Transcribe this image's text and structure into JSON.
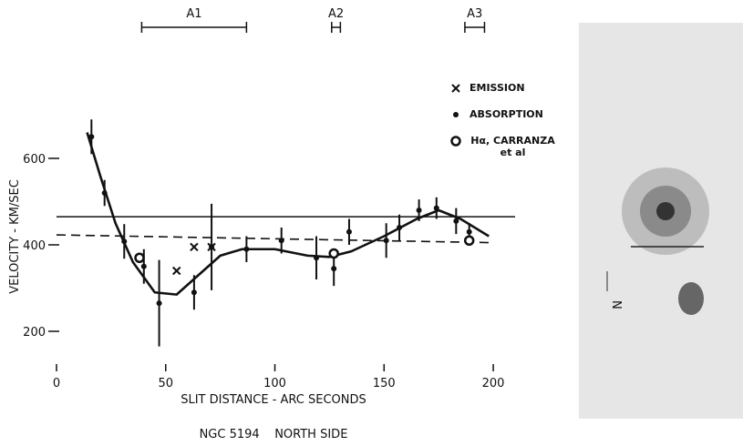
{
  "chart_data": {
    "type": "scatter",
    "ylabel": "VELOCITY - KM/SEC",
    "xlabel": "SLIT DISTANCE - ARC SECONDS",
    "caption": "NGC 5194    NORTH SIDE",
    "xlim": [
      0,
      210
    ],
    "ylim": [
      120,
      720
    ],
    "xticks": [
      0,
      50,
      100,
      150,
      200
    ],
    "yticks": [
      200,
      400,
      600
    ],
    "regions": [
      {
        "label": "A1",
        "range": [
          39,
          87
        ]
      },
      {
        "label": "A2",
        "range": [
          126,
          130
        ]
      },
      {
        "label": "A3",
        "range": [
          187,
          196
        ]
      }
    ],
    "series": [
      {
        "name": "EMISSION",
        "marker": "x",
        "x": [
          55,
          63,
          71
        ],
        "values": [
          340,
          395,
          395
        ]
      },
      {
        "name": "ABSORPTION",
        "marker": "dot",
        "x": [
          16,
          22,
          31,
          40,
          47,
          63,
          71,
          87,
          103,
          119,
          127,
          134,
          151,
          157,
          166,
          174,
          183,
          189
        ],
        "values": [
          650,
          520,
          408,
          350,
          265,
          290,
          395,
          390,
          410,
          370,
          345,
          430,
          410,
          440,
          480,
          485,
          455,
          430
        ],
        "errors": [
          40,
          30,
          40,
          40,
          100,
          40,
          100,
          30,
          30,
          50,
          40,
          30,
          40,
          30,
          25,
          25,
          30,
          20
        ]
      },
      {
        "name": "Hα, CARRANZA et al",
        "marker": "ring",
        "x": [
          38,
          127,
          189
        ],
        "values": [
          370,
          380,
          410
        ]
      }
    ],
    "fit": {
      "x": [
        14,
        20,
        27,
        35,
        45,
        55,
        65,
        75,
        85,
        100,
        115,
        125,
        135,
        150,
        165,
        175,
        185,
        198
      ],
      "values": [
        660,
        560,
        450,
        360,
        290,
        285,
        330,
        375,
        390,
        390,
        375,
        372,
        385,
        420,
        460,
        480,
        460,
        420
      ]
    },
    "hline": 465,
    "dashed": {
      "x": [
        0,
        200
      ],
      "values": [
        423,
        405
      ]
    },
    "image_label": "N"
  }
}
